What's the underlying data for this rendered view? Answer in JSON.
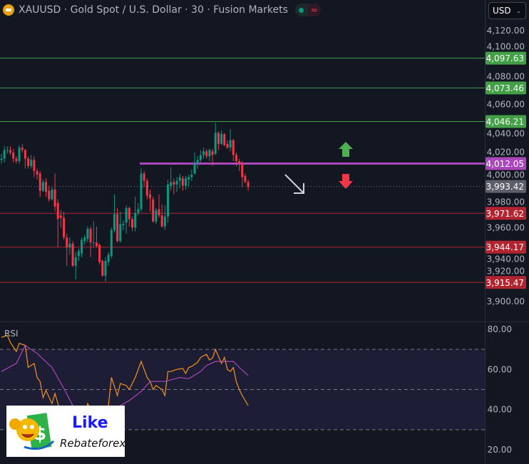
{
  "header": {
    "symbol_title": "XAUUSD · Gold Spot / U.S. Dollar · 30 · Fusion Markets",
    "currency_select": "USD",
    "icons": [
      "gold-bars-icon",
      "market-open-dot-icon",
      "wave-icon",
      "chevron-down-icon"
    ]
  },
  "indicator": {
    "label": "RSI"
  },
  "brand_logo": {
    "line1": "Like",
    "line2": "Rebateforex"
  },
  "colors": {
    "background": "#131722",
    "up": "#089981",
    "down": "#f23645",
    "resistance": "#43a047",
    "support": "#b2242f",
    "pivot": "#ab47bc",
    "current": "#5d606b",
    "rsi": "#f7931a",
    "rsi_ma": "#ab47bc"
  },
  "chart_data": [
    {
      "type": "candlestick",
      "title": "XAUUSD · Gold Spot / U.S. Dollar · 30 · Fusion Markets",
      "ylim": [
        3890,
        4130
      ],
      "yticks": [
        "4,120.00",
        "4,100.00",
        "4,080.00",
        "4,060.00",
        "4,040.00",
        "4,020.00",
        "4,000.00",
        "3,980.00",
        "3,960.00",
        "3,940.00",
        "3,920.00",
        "3,900.00"
      ],
      "ytick_values": [
        4120,
        4100,
        4080,
        4060,
        4040,
        4020,
        4000,
        3980,
        3960,
        3940,
        3920,
        3900
      ],
      "grid": false,
      "candles_ohlc": [
        [
          4015,
          4020,
          4012,
          4016
        ],
        [
          4016,
          4026,
          4013,
          4023
        ],
        [
          4023,
          4026,
          4020,
          4023
        ],
        [
          4023,
          4026,
          4019,
          4021
        ],
        [
          4021,
          4024,
          4013,
          4016
        ],
        [
          4016,
          4018,
          4012,
          4014
        ],
        [
          4014,
          4027,
          4012,
          4025
        ],
        [
          4025,
          4028,
          4021,
          4023
        ],
        [
          4023,
          4024,
          4008,
          4016
        ],
        [
          4016,
          4018,
          4008,
          4010
        ],
        [
          4010,
          4019,
          4008,
          4015
        ],
        [
          4015,
          4018,
          4001,
          4006
        ],
        [
          4006,
          4008,
          3999,
          4003
        ],
        [
          4004,
          4006,
          3985,
          3990
        ],
        [
          3990,
          3999,
          3989,
          3997
        ],
        [
          3997,
          4000,
          3985,
          3989
        ],
        [
          3990,
          3994,
          3981,
          3983
        ],
        [
          3983,
          3993,
          3982,
          3991
        ],
        [
          3991,
          4004,
          3973,
          3977
        ],
        [
          3980,
          3983,
          3944,
          3967
        ],
        [
          3970,
          3974,
          3960,
          3968
        ],
        [
          3968,
          3973,
          3950,
          3952
        ],
        [
          3952,
          3955,
          3929,
          3944
        ],
        [
          3944,
          3952,
          3938,
          3947
        ],
        [
          3947,
          3949,
          3928,
          3929
        ],
        [
          3929,
          3940,
          3918,
          3936
        ],
        [
          3937,
          3943,
          3933,
          3941
        ],
        [
          3939,
          3952,
          3936,
          3950
        ],
        [
          3949,
          3954,
          3946,
          3952
        ],
        [
          3951,
          3961,
          3948,
          3959
        ],
        [
          3959,
          3961,
          3936,
          3948
        ],
        [
          3948,
          3965,
          3944,
          3948
        ],
        [
          3948,
          3961,
          3944,
          3945
        ],
        [
          3946,
          3947,
          3930,
          3932
        ],
        [
          3933,
          3934,
          3920,
          3921
        ],
        [
          3921,
          3936,
          3916,
          3933
        ],
        [
          3932,
          3940,
          3929,
          3938
        ],
        [
          3937,
          3960,
          3935,
          3958
        ],
        [
          3958,
          3987,
          3956,
          3971
        ],
        [
          3971,
          3976,
          3948,
          3949
        ],
        [
          3949,
          3973,
          3948,
          3963
        ],
        [
          3962,
          3966,
          3958,
          3963
        ],
        [
          3964,
          3978,
          3955,
          3976
        ],
        [
          3976,
          3977,
          3961,
          3967
        ],
        [
          3967,
          3969,
          3957,
          3960
        ],
        [
          3960,
          3985,
          3957,
          3972
        ],
        [
          3972,
          3980,
          3970,
          3975
        ],
        [
          3975,
          4008,
          3973,
          4004
        ],
        [
          4004,
          4006,
          3993,
          3998
        ],
        [
          3998,
          4000,
          3983,
          3986
        ],
        [
          3987,
          3991,
          3973,
          3984
        ],
        [
          3983,
          3985,
          3964,
          3965
        ],
        [
          3965,
          3976,
          3963,
          3974
        ],
        [
          3975,
          3987,
          3968,
          3970
        ],
        [
          3970,
          3979,
          3960,
          3961
        ],
        [
          3961,
          3978,
          3958,
          3969
        ],
        [
          3969,
          3999,
          3964,
          3995
        ],
        [
          3994,
          4009,
          3990,
          3997
        ],
        [
          3997,
          4000,
          3987,
          3995
        ],
        [
          3995,
          4001,
          3989,
          3998
        ],
        [
          3998,
          4004,
          3992,
          4001
        ],
        [
          4000,
          4002,
          3990,
          3994
        ],
        [
          3994,
          4002,
          3991,
          4000
        ],
        [
          3999,
          4003,
          3993,
          4001
        ],
        [
          4001,
          4007,
          3998,
          4003
        ],
        [
          4004,
          4021,
          4003,
          4012
        ],
        [
          4012,
          4018,
          4008,
          4015
        ],
        [
          4015,
          4023,
          4013,
          4019
        ],
        [
          4019,
          4025,
          4016,
          4022
        ],
        [
          4022,
          4024,
          4016,
          4018
        ],
        [
          4018,
          4024,
          4014,
          4023
        ],
        [
          4022,
          4024,
          4010,
          4019
        ],
        [
          4020,
          4045,
          4019,
          4037
        ],
        [
          4037,
          4038,
          4023,
          4028
        ],
        [
          4028,
          4039,
          4027,
          4036
        ],
        [
          4036,
          4037,
          4026,
          4027
        ],
        [
          4028,
          4031,
          4024,
          4025
        ],
        [
          4025,
          4040,
          4022,
          4031
        ],
        [
          4031,
          4032,
          4014,
          4019
        ],
        [
          4019,
          4021,
          4010,
          4014
        ],
        [
          4014,
          4016,
          4006,
          4012
        ],
        [
          4012,
          4014,
          3993,
          4001
        ],
        [
          4002,
          4004,
          3996,
          3997
        ],
        [
          3997,
          3999,
          3990,
          3993
        ]
      ],
      "horizontal_levels": [
        {
          "value": 4097.63,
          "label": "4,097.63",
          "kind": "resistance"
        },
        {
          "value": 4073.46,
          "label": "4,073.46",
          "kind": "resistance"
        },
        {
          "value": 4046.21,
          "label": "4,046.21",
          "kind": "resistance"
        },
        {
          "value": 4012.05,
          "label": "4,012.05",
          "kind": "pivot",
          "starts_at_bar": 47
        },
        {
          "value": 3993.42,
          "label": "3,993.42",
          "kind": "current"
        },
        {
          "value": 3971.62,
          "label": "3,971.62",
          "kind": "support"
        },
        {
          "value": 3944.17,
          "label": "3,944.17",
          "kind": "support"
        },
        {
          "value": 3915.47,
          "label": "3,915.47",
          "kind": "support"
        }
      ],
      "annotations": [
        "green-up-arrow-icon",
        "red-down-arrow-icon",
        "white-diagonal-down-arrow-icon"
      ]
    },
    {
      "type": "line",
      "title": "RSI",
      "ylim": [
        15,
        85
      ],
      "yticks": [
        "80.00",
        "60.00",
        "40.00",
        "20.00"
      ],
      "ytick_values": [
        80,
        60,
        40,
        20
      ],
      "bands": [
        70,
        50,
        30
      ],
      "series": [
        {
          "key": "rsi",
          "points": [
            [
              0,
              76
            ],
            [
              2,
              77
            ],
            [
              3,
              73.5
            ],
            [
              5,
              69
            ],
            [
              6,
              73
            ],
            [
              8,
              72
            ],
            [
              9,
              61
            ],
            [
              11,
              63
            ],
            [
              12,
              56
            ],
            [
              13,
              54
            ],
            [
              14,
              46
            ],
            [
              15,
              49.5
            ],
            [
              17,
              43
            ],
            [
              18,
              48
            ],
            [
              20,
              38
            ],
            [
              22,
              33
            ],
            [
              24,
              35
            ],
            [
              26,
              30
            ],
            [
              28,
              33
            ],
            [
              29,
              43
            ],
            [
              31,
              38
            ],
            [
              33,
              36
            ],
            [
              35,
              40
            ],
            [
              36,
              42
            ],
            [
              37,
              56
            ],
            [
              39,
              47
            ],
            [
              40,
              53
            ],
            [
              42,
              52
            ],
            [
              43,
              50
            ],
            [
              45,
              56
            ],
            [
              47,
              64
            ],
            [
              48,
              60
            ],
            [
              49,
              56
            ],
            [
              50,
              54
            ],
            [
              51,
              50
            ],
            [
              52,
              52
            ],
            [
              54,
              50
            ],
            [
              55,
              47
            ],
            [
              56,
              59
            ],
            [
              57,
              59
            ],
            [
              59,
              60
            ],
            [
              61,
              60.5
            ],
            [
              62,
              58
            ],
            [
              63,
              61
            ],
            [
              64,
              61.5
            ],
            [
              66,
              63.6
            ],
            [
              67,
              66
            ],
            [
              69,
              67.5
            ],
            [
              70,
              64.7
            ],
            [
              71,
              65.7
            ],
            [
              72,
              70
            ],
            [
              74,
              63
            ],
            [
              75,
              66
            ],
            [
              76,
              60
            ],
            [
              77,
              59
            ],
            [
              78,
              61
            ],
            [
              79,
              54
            ],
            [
              80,
              50
            ],
            [
              81,
              47
            ],
            [
              83,
              42
            ]
          ]
        },
        {
          "key": "rsi_ma",
          "points": [
            [
              0,
              59
            ],
            [
              5,
              63
            ],
            [
              8,
              72
            ],
            [
              12,
              68
            ],
            [
              17,
              61
            ],
            [
              21,
              50.5
            ],
            [
              24,
              42
            ],
            [
              30,
              36
            ],
            [
              36,
              40
            ],
            [
              40,
              42
            ],
            [
              43,
              44.5
            ],
            [
              47,
              49
            ],
            [
              50,
              54
            ],
            [
              55,
              54
            ],
            [
              60,
              56
            ],
            [
              63,
              55.4
            ],
            [
              67,
              59
            ],
            [
              69,
              62
            ],
            [
              72,
              64
            ],
            [
              75,
              64
            ],
            [
              78,
              64
            ],
            [
              80,
              61
            ],
            [
              83,
              57
            ]
          ]
        }
      ]
    }
  ]
}
